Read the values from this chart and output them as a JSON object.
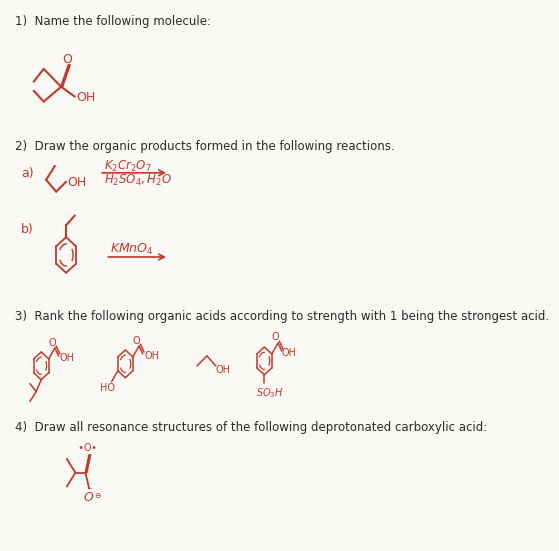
{
  "background_color": "#faf8f5",
  "text_color": "#c0392b",
  "label_color": "#2c2c2c",
  "structure_color": "#c0392b",
  "questions": [
    "1)  Name the following molecule:",
    "2)  Draw the organic products formed in the following reactions.",
    "3)  Rank the following organic acids according to strength with 1 being the strongest acid.",
    "4)  Draw all resonance structures of the following deprotonated carboxylic acid:"
  ]
}
